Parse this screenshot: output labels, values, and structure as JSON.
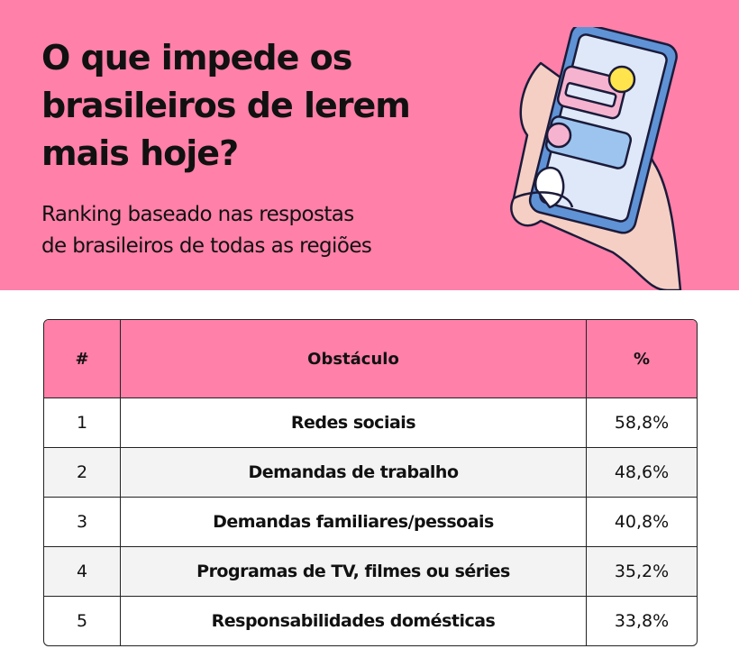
{
  "header": {
    "title_lines": [
      "O que impede os",
      "brasileiros de lerem",
      "mais hoje?"
    ],
    "subtitle_lines": [
      "Ranking baseado nas respostas",
      "de brasileiros de todas as regiões"
    ]
  },
  "table": {
    "columns": [
      "#",
      "Obstáculo",
      "%"
    ],
    "rows": [
      [
        "1",
        "Redes sociais",
        "58,8%"
      ],
      [
        "2",
        "Demandas de trabalho",
        "48,6%"
      ],
      [
        "3",
        "Demandas familiares/pessoais",
        "40,8%"
      ],
      [
        "4",
        "Programas de TV, filmes ou séries",
        "35,2%"
      ],
      [
        "5",
        "Responsabilidades domésticas",
        "33,8%"
      ]
    ]
  }
}
